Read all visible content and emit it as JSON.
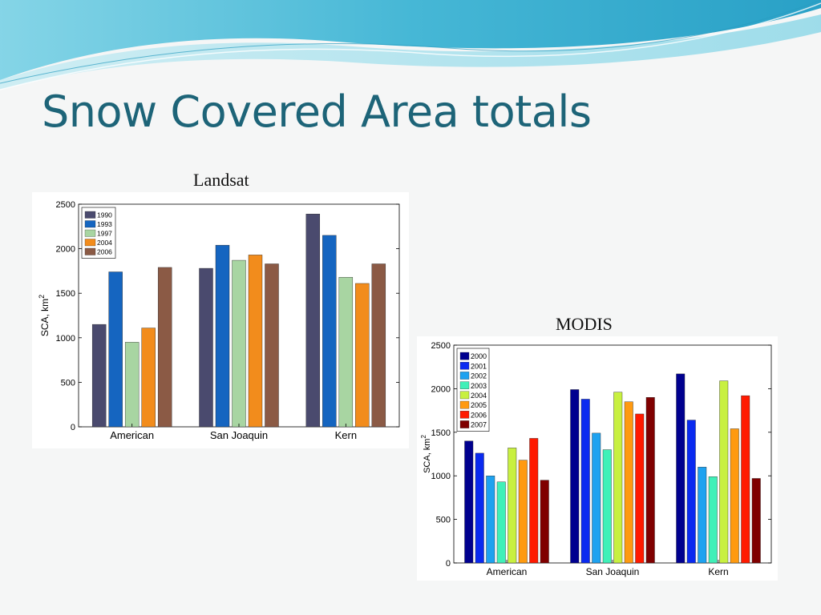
{
  "slide": {
    "title": "Snow Covered Area totals"
  },
  "colors": {
    "title": "#1d6478",
    "wave_dark": "#2aa6c8",
    "wave_light": "#9fdbe8"
  },
  "chart_data": [
    {
      "id": "landsat",
      "type": "bar",
      "title": "Landsat",
      "xlabel": "",
      "ylabel": "SCA, km",
      "ylabel_superscript": "2",
      "ylim": [
        0,
        2500
      ],
      "yticks": [
        0,
        500,
        1000,
        1500,
        2000,
        2500
      ],
      "grid": false,
      "legend_position": "top-left",
      "categories": [
        "American",
        "San Joaquin",
        "Kern"
      ],
      "series": [
        {
          "name": "1990",
          "color": "#4a4a6e",
          "values": [
            1150,
            1780,
            2390
          ]
        },
        {
          "name": "1993",
          "color": "#1565c0",
          "values": [
            1740,
            2040,
            2150
          ]
        },
        {
          "name": "1997",
          "color": "#a8d5a2",
          "values": [
            950,
            1870,
            1680
          ]
        },
        {
          "name": "2004",
          "color": "#f28c1c",
          "values": [
            1110,
            1930,
            1610
          ]
        },
        {
          "name": "2006",
          "color": "#8b5a45",
          "values": [
            1790,
            1830,
            1830
          ]
        }
      ]
    },
    {
      "id": "modis",
      "type": "bar",
      "title": "MODIS",
      "xlabel": "",
      "ylabel": "SCA, km",
      "ylabel_superscript": "2",
      "ylim": [
        0,
        2500
      ],
      "yticks": [
        0,
        500,
        1000,
        1500,
        2000,
        2500
      ],
      "grid": false,
      "legend_position": "top-left",
      "categories": [
        "American",
        "San Joaquin",
        "Kern"
      ],
      "series": [
        {
          "name": "2000",
          "color": "#00008f",
          "values": [
            1400,
            1990,
            2170
          ]
        },
        {
          "name": "2001",
          "color": "#0a2af0",
          "values": [
            1260,
            1880,
            1640
          ]
        },
        {
          "name": "2002",
          "color": "#1ea2f0",
          "values": [
            1000,
            1490,
            1100
          ]
        },
        {
          "name": "2003",
          "color": "#40f0b8",
          "values": [
            930,
            1300,
            990
          ]
        },
        {
          "name": "2004",
          "color": "#c8f040",
          "values": [
            1320,
            1960,
            2090
          ]
        },
        {
          "name": "2005",
          "color": "#ff9a10",
          "values": [
            1180,
            1850,
            1540
          ]
        },
        {
          "name": "2006",
          "color": "#ff1a00",
          "values": [
            1430,
            1710,
            1920
          ]
        },
        {
          "name": "2007",
          "color": "#800000",
          "values": [
            950,
            1900,
            970
          ]
        }
      ]
    }
  ]
}
